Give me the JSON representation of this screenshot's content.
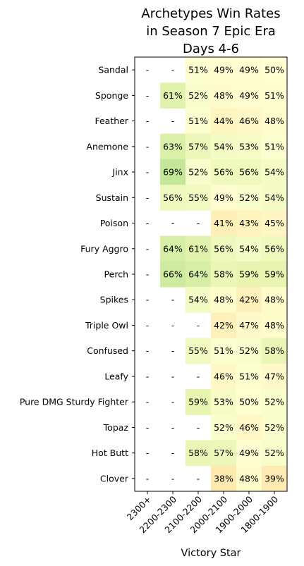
{
  "chart_data": {
    "type": "heatmap",
    "title": [
      "Archetypes Win Rates",
      "in Season 7 Epic Era",
      "Days 4-6"
    ],
    "xlabel": "Victory Star",
    "ylabel": "",
    "x_categories": [
      "2300+",
      "2200-2300",
      "2100-2200",
      "2000-2100",
      "1900-2000",
      "1800-1900"
    ],
    "y_categories": [
      "Sandal",
      "Sponge",
      "Feather",
      "Anemone",
      "Jinx",
      "Sustain",
      "Poison",
      "Fury Aggro",
      "Perch",
      "Spikes",
      "Triple Owl",
      "Confused",
      "Leafy",
      "Pure DMG Sturdy Fighter",
      "Topaz",
      "Hot Butt",
      "Clover"
    ],
    "values": [
      [
        null,
        null,
        51,
        49,
        49,
        50
      ],
      [
        null,
        61,
        52,
        48,
        49,
        51
      ],
      [
        null,
        null,
        51,
        44,
        46,
        48
      ],
      [
        null,
        63,
        57,
        54,
        53,
        51
      ],
      [
        null,
        69,
        52,
        56,
        56,
        54
      ],
      [
        null,
        56,
        55,
        49,
        52,
        54
      ],
      [
        null,
        null,
        null,
        41,
        43,
        45
      ],
      [
        null,
        64,
        61,
        56,
        54,
        56
      ],
      [
        null,
        66,
        64,
        58,
        59,
        59
      ],
      [
        null,
        null,
        54,
        48,
        42,
        48
      ],
      [
        null,
        null,
        null,
        42,
        47,
        48
      ],
      [
        null,
        null,
        55,
        51,
        52,
        58
      ],
      [
        null,
        null,
        null,
        46,
        51,
        47
      ],
      [
        null,
        null,
        59,
        53,
        50,
        52
      ],
      [
        null,
        null,
        null,
        52,
        46,
        52
      ],
      [
        null,
        null,
        58,
        57,
        49,
        52
      ],
      [
        null,
        null,
        null,
        38,
        48,
        39
      ]
    ],
    "missing_label": "-",
    "value_suffix": "%",
    "colormap": "RdYlGn",
    "color_range": [
      0,
      100
    ],
    "grid": false,
    "legend": "none"
  }
}
